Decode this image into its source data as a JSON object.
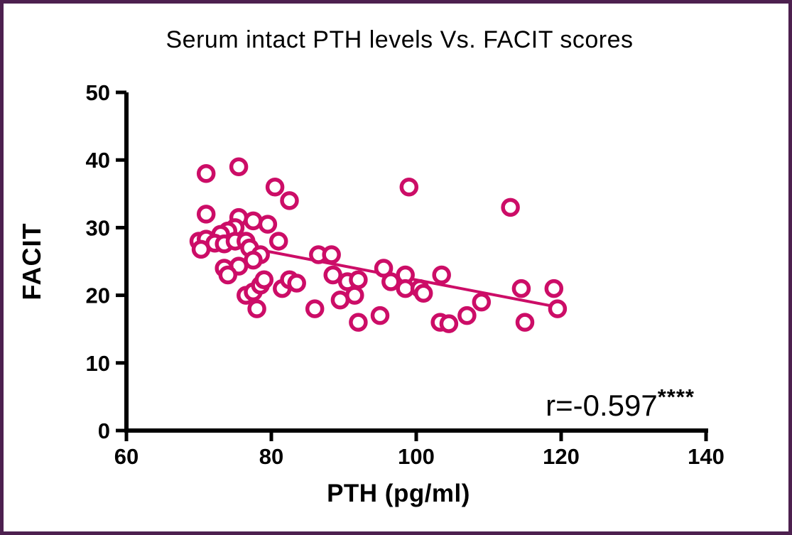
{
  "figure": {
    "background": "#FFFFFF",
    "frame_border_color": "#4D204F"
  },
  "chart_data": {
    "type": "scatter",
    "title": "Serum intact PTH levels Vs. FACIT scores",
    "xlabel": "PTH (pg/ml)",
    "ylabel": "FACIT",
    "xlim": [
      60,
      140
    ],
    "ylim": [
      0,
      50
    ],
    "x_ticks": [
      60,
      80,
      100,
      120,
      140
    ],
    "y_ticks": [
      0,
      10,
      20,
      30,
      40,
      50
    ],
    "grid": false,
    "legend": "none",
    "marker": {
      "shape": "open-circle",
      "color": "#CC0D67",
      "fill": "#FFFFFF"
    },
    "points": [
      [
        71,
        38
      ],
      [
        75.5,
        39
      ],
      [
        80.5,
        36
      ],
      [
        82.5,
        34
      ],
      [
        99,
        36
      ],
      [
        113,
        33
      ],
      [
        71,
        32
      ],
      [
        75.5,
        31.5
      ],
      [
        77.5,
        31
      ],
      [
        79.5,
        30.5
      ],
      [
        75,
        30
      ],
      [
        74,
        29.5
      ],
      [
        73,
        29
      ],
      [
        70,
        28
      ],
      [
        71,
        28.3
      ],
      [
        72.2,
        27.7
      ],
      [
        70.3,
        26.8
      ],
      [
        73.5,
        27.6
      ],
      [
        75,
        28
      ],
      [
        76.5,
        28
      ],
      [
        77,
        27
      ],
      [
        78.5,
        26
      ],
      [
        81,
        28
      ],
      [
        77.5,
        25.2
      ],
      [
        75.5,
        24.3
      ],
      [
        73.5,
        24
      ],
      [
        74,
        23
      ],
      [
        76.5,
        20
      ],
      [
        77.5,
        20.5
      ],
      [
        78.5,
        21.5
      ],
      [
        79,
        22.3
      ],
      [
        81.5,
        21
      ],
      [
        82.5,
        22.3
      ],
      [
        83.5,
        21.8
      ],
      [
        78,
        18
      ],
      [
        86.5,
        26
      ],
      [
        88.3,
        26
      ],
      [
        86,
        18
      ],
      [
        88.5,
        23
      ],
      [
        90.5,
        22
      ],
      [
        92,
        22.3
      ],
      [
        89.5,
        19.3
      ],
      [
        91.5,
        20
      ],
      [
        92,
        16
      ],
      [
        95,
        17
      ],
      [
        95.5,
        24
      ],
      [
        96.5,
        22
      ],
      [
        98.5,
        23
      ],
      [
        98.5,
        21
      ],
      [
        100.5,
        21
      ],
      [
        101,
        20.3
      ],
      [
        103.5,
        23
      ],
      [
        109,
        19
      ],
      [
        107,
        17
      ],
      [
        103.3,
        16
      ],
      [
        104.5,
        15.8
      ],
      [
        114.5,
        21
      ],
      [
        119,
        21
      ],
      [
        119.5,
        18
      ],
      [
        115,
        16
      ]
    ],
    "trendline": {
      "x1": 78,
      "y1": 26.8,
      "x2": 119.8,
      "y2": 18.2,
      "color": "#CC0D67"
    },
    "annotation": {
      "text": "r=-0.597",
      "superscript": "****"
    }
  }
}
